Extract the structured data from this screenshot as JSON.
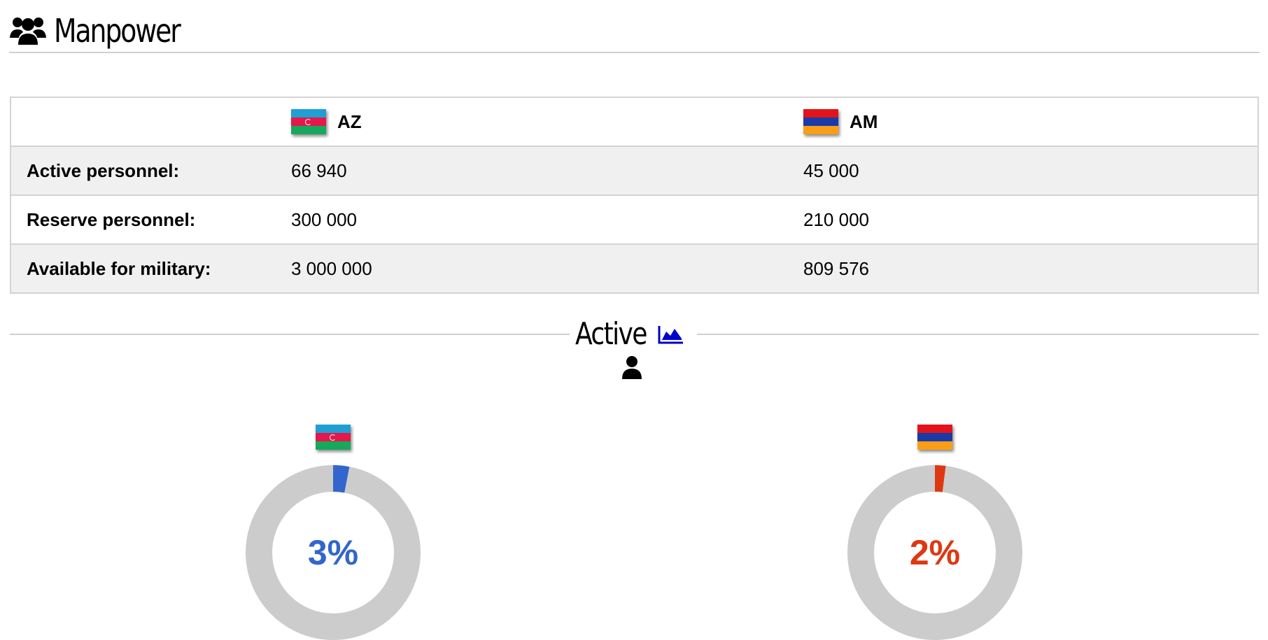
{
  "header": {
    "title": "Manpower",
    "icon": "users-icon"
  },
  "table": {
    "countries": [
      {
        "code": "AZ",
        "flag": "azerbaijan-flag-icon"
      },
      {
        "code": "AM",
        "flag": "armenia-flag-icon"
      }
    ],
    "rows": [
      {
        "label": "Active personnel:",
        "values": [
          "66 940",
          "45 000"
        ]
      },
      {
        "label": "Reserve personnel:",
        "values": [
          "300 000",
          "210 000"
        ]
      },
      {
        "label": "Available for military:",
        "values": [
          "3 000 000",
          "809 576"
        ]
      }
    ]
  },
  "section": {
    "title": "Active",
    "chart_icon": "area-chart-icon",
    "sub_icon": "user-icon"
  },
  "chart_data": [
    {
      "type": "pie",
      "country": "AZ",
      "values": [
        3,
        97
      ],
      "label": "3%",
      "color": "#3366cc",
      "track_color": "#cccccc"
    },
    {
      "type": "pie",
      "country": "AM",
      "values": [
        2,
        98
      ],
      "label": "2%",
      "color": "#dc3912",
      "track_color": "#cccccc"
    }
  ]
}
